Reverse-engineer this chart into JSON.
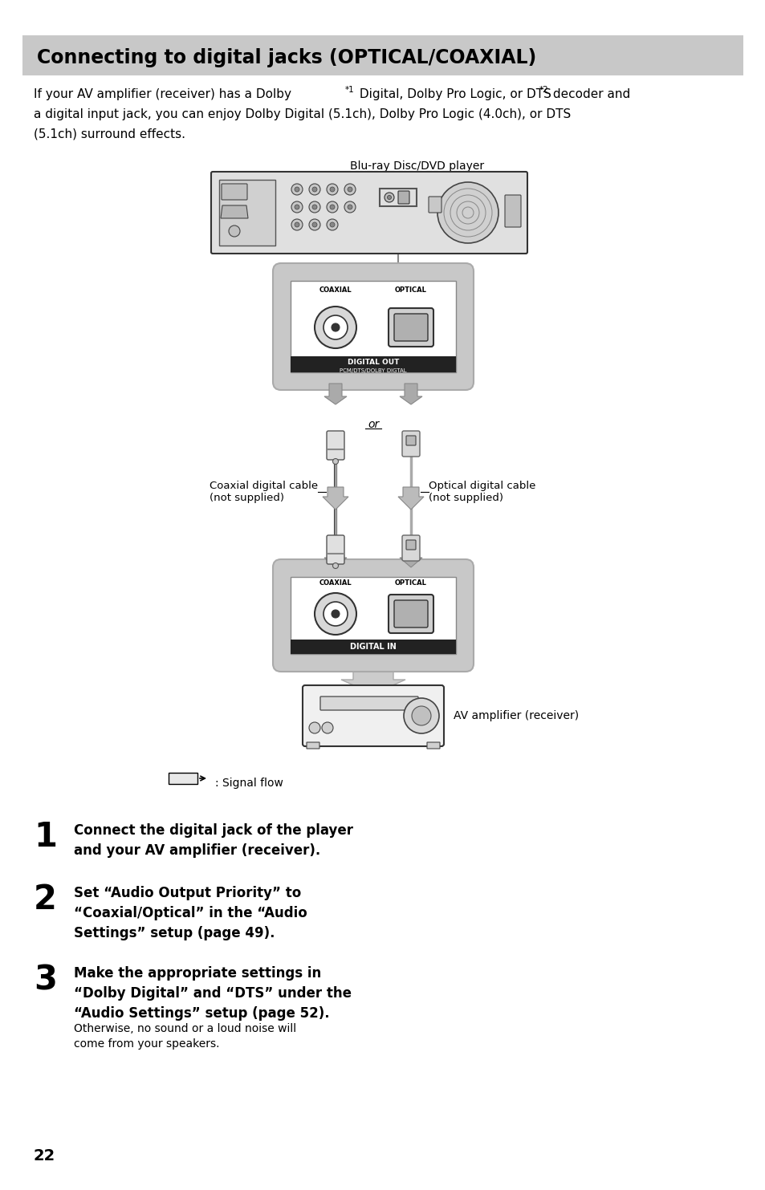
{
  "title": "Connecting to digital jacks (OPTICAL/COAXIAL)",
  "title_bg": "#c8c8c8",
  "page_bg": "#ffffff",
  "page_number": "22",
  "diagram_label_top": "Blu-ray Disc/DVD player",
  "diagram_label_coaxial_cable": "Coaxial digital cable\n(not supplied)",
  "diagram_label_optical_cable": "Optical digital cable\n(not supplied)",
  "diagram_label_av": "AV amplifier (receiver)",
  "diagram_label_or": "or",
  "diagram_label_signal": ": Signal flow",
  "digital_out_label": "DIGITAL OUT",
  "pcm_label": "PCM/DTS/DOLBY DIGTAL",
  "digital_in_label": "DIGITAL IN",
  "coaxial_label": "COAXIAL",
  "optical_label": "OPTICAL",
  "step1_bold": "Connect the digital jack of the player\nand your AV amplifier (receiver).",
  "step2_bold": "Set “Audio Output Priority” to\n“Coaxial/Optical” in the “Audio\nSettings” setup (page 49).",
  "step3_bold": "Make the appropriate settings in\n“Dolby Digital” and “DTS” under the\n“Audio Settings” setup (page 52).",
  "step3_normal": "Otherwise, no sound or a loud noise will\ncome from your speakers.",
  "gray_light": "#c8c8c8",
  "gray_medium": "#999999",
  "gray_dark": "#555555",
  "black": "#000000",
  "white": "#ffffff",
  "intro_line1_part1": "If your AV amplifier (receiver) has a Dolby",
  "intro_line1_part2": " Digital, Dolby Pro Logic, or DTS",
  "intro_line1_part3": " decoder and",
  "intro_line2": "a digital input jack, you can enjoy Dolby Digital (5.1ch), Dolby Pro Logic (4.0ch), or DTS",
  "intro_line3": "(5.1ch) surround effects."
}
